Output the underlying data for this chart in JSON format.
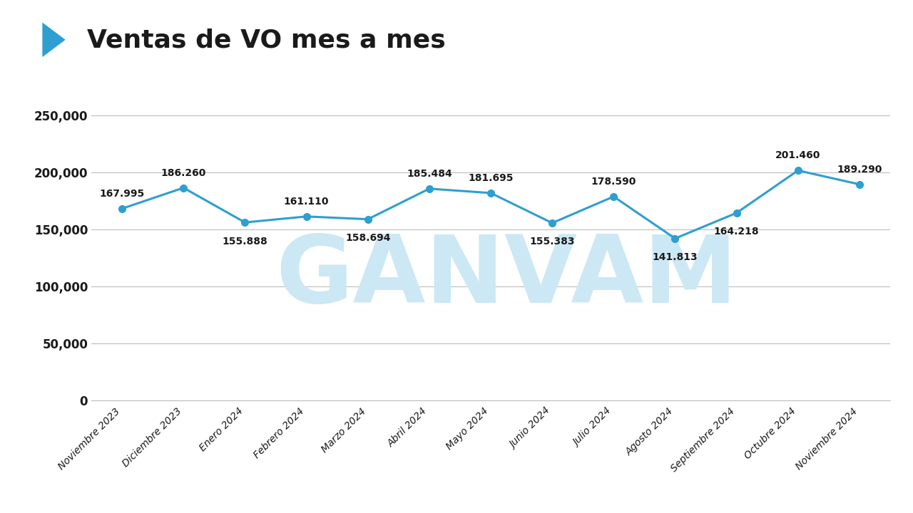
{
  "title": "Ventas de VO mes a mes",
  "categories": [
    "Noviembre 2023",
    "Diciembre 2023",
    "Enero 2024",
    "Febrero 2024",
    "Marzo 2024",
    "Abril 2024",
    "Mayo 2024",
    "Junio 2024",
    "Julio 2024",
    "Agosto 2024",
    "Septiembre 2024",
    "Octubre 2024",
    "Noviembre 2024"
  ],
  "values": [
    167995,
    186260,
    155888,
    161110,
    158694,
    185484,
    181695,
    155383,
    178590,
    141813,
    164218,
    201460,
    189290
  ],
  "labels": [
    "167.995",
    "186.260",
    "155.888",
    "161.110",
    "158.694",
    "185.484",
    "181.695",
    "155.383",
    "178.590",
    "141.813",
    "164.218",
    "201.460",
    "189.290"
  ],
  "label_offsets_pts": [
    10,
    10,
    -14,
    10,
    -14,
    10,
    10,
    -14,
    10,
    -14,
    -14,
    10,
    10
  ],
  "line_color": "#2e9fd0",
  "marker_color": "#2e9fd0",
  "background_color": "#ffffff",
  "grid_color": "#bbbbbb",
  "title_color": "#1a1a1a",
  "label_color": "#1a1a1a",
  "tick_color": "#1a1a1a",
  "arrow_color": "#2e9fd0",
  "watermark_text": "GANVAM",
  "watermark_color": "#cce8f4",
  "ylim": [
    0,
    270000
  ],
  "yticks": [
    0,
    50000,
    100000,
    150000,
    200000,
    250000
  ],
  "ytick_labels": [
    "0",
    "50,000",
    "100,000",
    "150,000",
    "200,000",
    "250,000"
  ],
  "title_fontsize": 26,
  "label_fontsize": 10,
  "tick_fontsize": 12,
  "xtick_fontsize": 10,
  "watermark_fontsize": 95,
  "line_width": 2.2,
  "marker_size": 7
}
